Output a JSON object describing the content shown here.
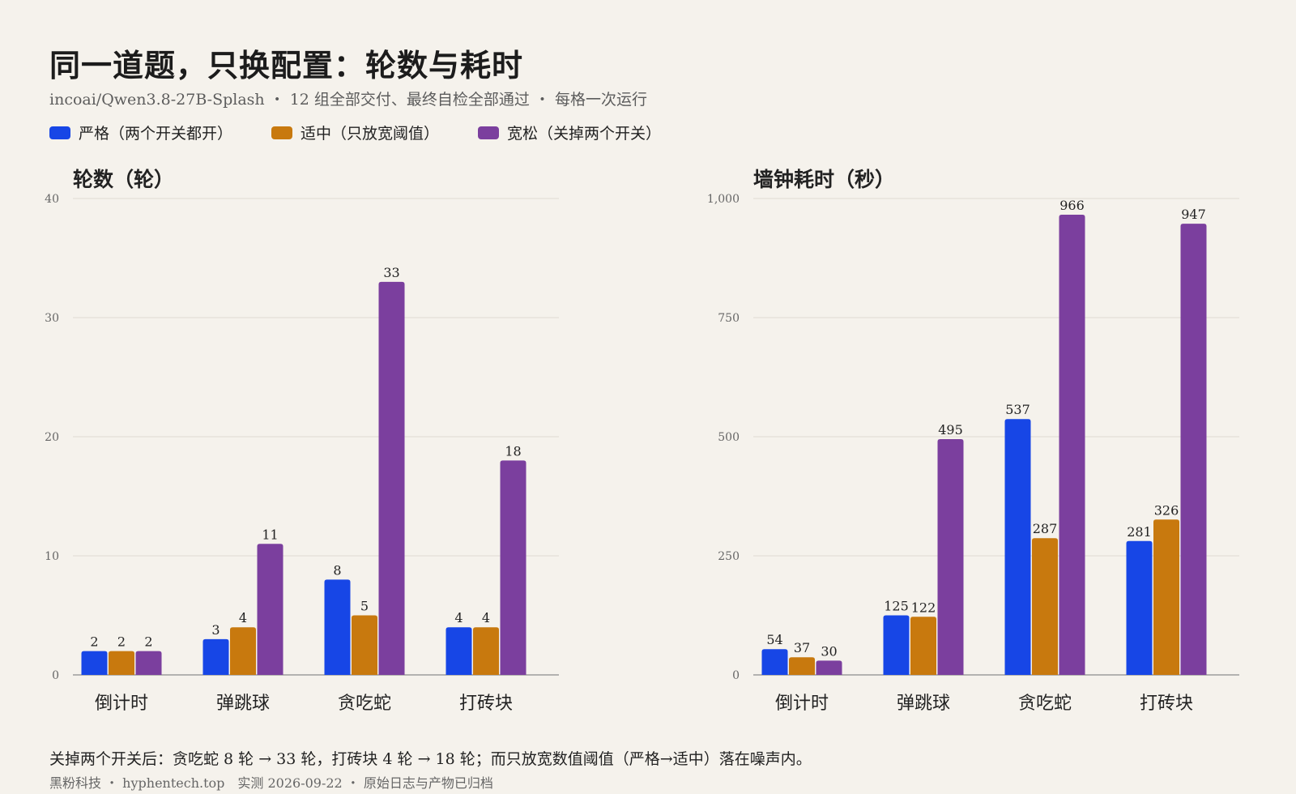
{
  "header": {
    "title": "同一道题，只换配置：轮数与耗时",
    "subtitle": "incoai/Qwen3.8-27B-Splash ・ 12 组全部交付、最终自检全部通过 ・ 每格一次运行"
  },
  "legend": [
    {
      "label": "严格（两个开关都开）",
      "color": "#1746e6"
    },
    {
      "label": "适中（只放宽阈值）",
      "color": "#c8790e"
    },
    {
      "label": "宽松（关掉两个开关）",
      "color": "#7b3f9e"
    }
  ],
  "chart_data": [
    {
      "type": "bar",
      "title": "轮数（轮）",
      "categories": [
        "倒计时",
        "弹跳球",
        "贪吃蛇",
        "打砖块"
      ],
      "series": [
        {
          "name": "严格（两个开关都开）",
          "color": "#1746e6",
          "values": [
            2,
            3,
            8,
            4
          ]
        },
        {
          "name": "适中（只放宽阈值）",
          "color": "#c8790e",
          "values": [
            2,
            4,
            5,
            4
          ]
        },
        {
          "name": "宽松（关掉两个开关）",
          "color": "#7b3f9e",
          "values": [
            2,
            11,
            33,
            18
          ]
        }
      ],
      "ylim": [
        0,
        40
      ],
      "yticks": [
        0,
        10,
        20,
        30,
        40
      ],
      "ytick_labels": [
        "0",
        "10",
        "20",
        "30",
        "40"
      ],
      "grid": true
    },
    {
      "type": "bar",
      "title": "墙钟耗时（秒）",
      "categories": [
        "倒计时",
        "弹跳球",
        "贪吃蛇",
        "打砖块"
      ],
      "series": [
        {
          "name": "严格（两个开关都开）",
          "color": "#1746e6",
          "values": [
            54,
            125,
            537,
            281
          ]
        },
        {
          "name": "适中（只放宽阈值）",
          "color": "#c8790e",
          "values": [
            37,
            122,
            287,
            326
          ]
        },
        {
          "name": "宽松（关掉两个开关）",
          "color": "#7b3f9e",
          "values": [
            30,
            495,
            966,
            947
          ]
        }
      ],
      "ylim": [
        0,
        1000
      ],
      "yticks": [
        0,
        250,
        500,
        750,
        1000
      ],
      "ytick_labels": [
        "0",
        "250",
        "500",
        "750",
        "1,000"
      ],
      "grid": true
    }
  ],
  "footer": {
    "note": "关掉两个开关后：贪吃蛇 8 轮 → 33 轮，打砖块 4 轮 → 18 轮；而只放宽数值阈值（严格→适中）落在噪声内。",
    "source": "黑粉科技 ・ hyphentech.top　实测 2026-09-22 ・ 原始日志与产物已归档"
  }
}
